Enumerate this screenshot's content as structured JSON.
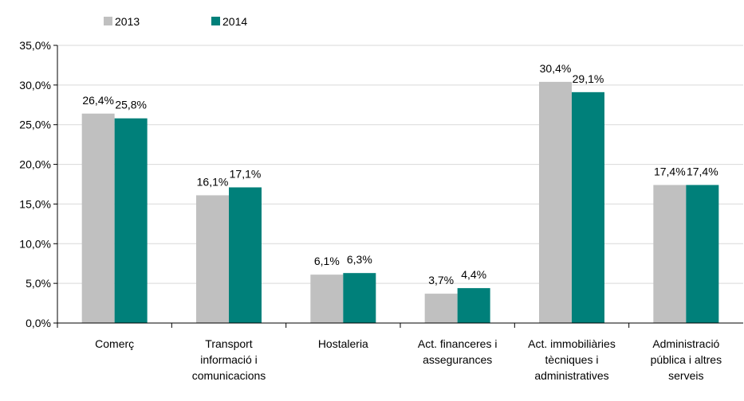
{
  "chart_data": {
    "type": "bar",
    "categories": [
      "Comerç",
      "Transport informació i comunicacions",
      "Hostaleria",
      "Act. financeres i assegurances",
      "Act. immobiliàries tècniques i administratives",
      "Administració pública i altres serveis"
    ],
    "series": [
      {
        "name": "2013",
        "color": "#c0c0c0",
        "values": [
          26.4,
          16.1,
          6.1,
          3.7,
          30.4,
          17.4
        ],
        "value_labels": [
          "26,4%",
          "16,1%",
          "6,1%",
          "3,7%",
          "30,4%",
          "17,4%"
        ]
      },
      {
        "name": "2014",
        "color": "#00807a",
        "values": [
          25.8,
          17.1,
          6.3,
          4.4,
          29.1,
          17.4
        ],
        "value_labels": [
          "25,8%",
          "17,1%",
          "6,3%",
          "4,4%",
          "29,1%",
          "17,4%"
        ]
      }
    ],
    "ylim": [
      0,
      35
    ],
    "yticks": [
      {
        "value": 0,
        "label": "0,0%"
      },
      {
        "value": 5,
        "label": "5,0%"
      },
      {
        "value": 10,
        "label": "10,0%"
      },
      {
        "value": 15,
        "label": "15,0%"
      },
      {
        "value": 20,
        "label": "20,0%"
      },
      {
        "value": 25,
        "label": "25,0%"
      },
      {
        "value": 30,
        "label": "30,0%"
      },
      {
        "value": 35,
        "label": "35,0%"
      }
    ],
    "grid": true,
    "legend": "top"
  }
}
